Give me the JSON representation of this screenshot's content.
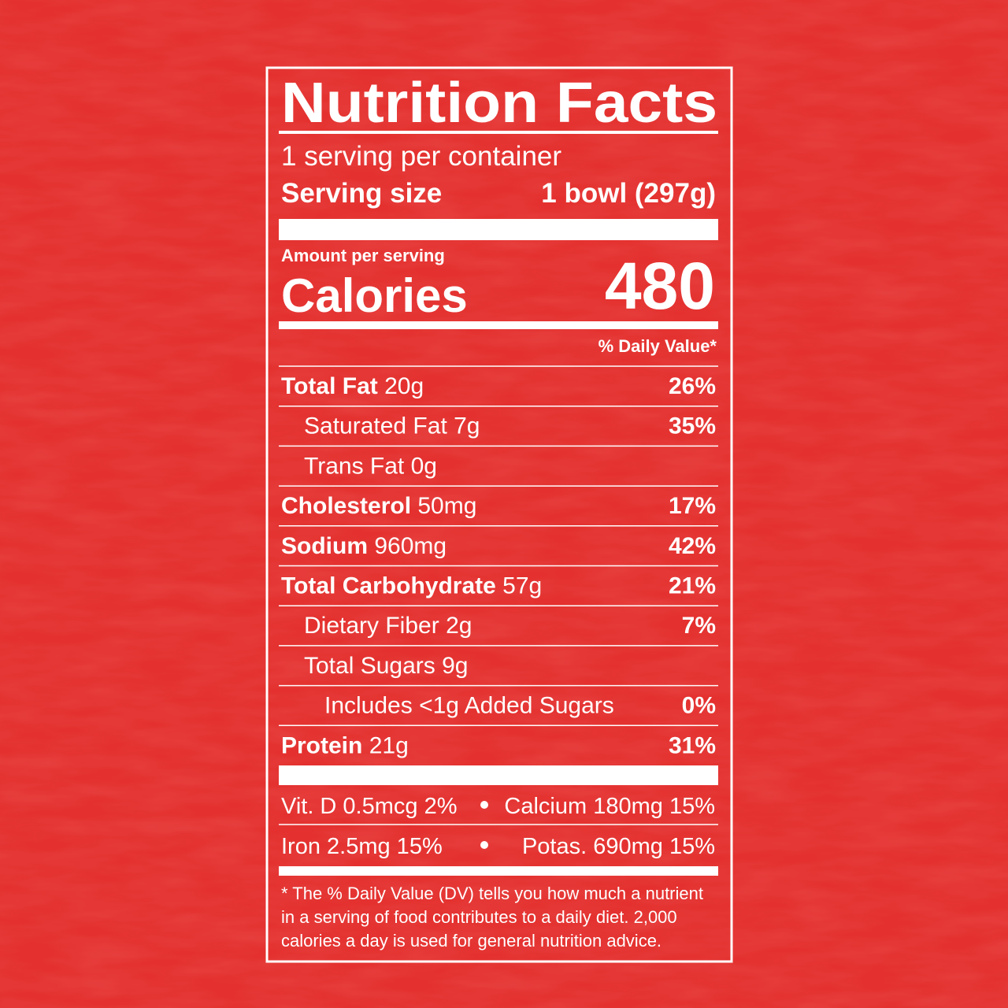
{
  "header": {
    "title": "Nutrition Facts",
    "servings": "1 serving per container",
    "serving_size_label": "Serving size",
    "serving_size": "1 bowl (297g)"
  },
  "calories": {
    "amount_label": "Amount per serving",
    "label": "Calories",
    "value": 480
  },
  "dv_header": "% Daily Value*",
  "nutrients": [
    {
      "name": "Total Fat",
      "amount": "20g",
      "dv": "26%",
      "level": 0
    },
    {
      "name": "Saturated Fat",
      "amount": "7g",
      "dv": "35%",
      "level": 1
    },
    {
      "name": "Trans Fat",
      "amount": "0g",
      "level": 1
    },
    {
      "name": "Cholesterol",
      "amount": "50mg",
      "dv": "17%",
      "level": 0
    },
    {
      "name": "Sodium",
      "amount": "960mg",
      "dv": "42%",
      "level": 0
    },
    {
      "name": "Total Carbohydrate",
      "amount": "57g",
      "dv": "21%",
      "level": 0
    },
    {
      "name": "Dietary Fiber",
      "amount": "2g",
      "dv": "7%",
      "level": 1
    },
    {
      "name": "Total Sugars",
      "amount": "9g",
      "level": 1
    },
    {
      "name": "Includes <1g Added Sugars",
      "dv": "0%",
      "level": 2
    },
    {
      "name": "Protein",
      "amount": "21g",
      "dv": "31%",
      "level": 0
    }
  ],
  "vitamins": [
    [
      "Vit. D 0.5mcg 2%",
      "Calcium 180mg 15%"
    ],
    [
      "Iron 2.5mg 15%",
      "Potas. 690mg 15%"
    ]
  ],
  "footnote": [
    "* The % Daily Value (DV) tells you how much a nutrient",
    "in a serving of food contributes to a daily diet. 2,000",
    "calories a day is used for general nutrition advice."
  ]
}
